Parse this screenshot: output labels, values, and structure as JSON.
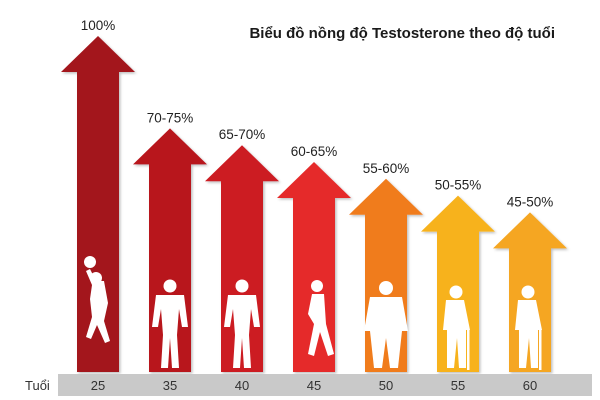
{
  "chart_data": {
    "type": "bar",
    "title": "Biểu đồ nồng độ Testosterone theo độ tuổi",
    "xlabel": "Tuổi",
    "categories": [
      "25",
      "35",
      "40",
      "45",
      "50",
      "55",
      "60"
    ],
    "value_labels": [
      "100%",
      "70-75%",
      "65-70%",
      "60-65%",
      "55-60%",
      "50-55%",
      "45-50%"
    ],
    "values": [
      100,
      72.5,
      67.5,
      62.5,
      57.5,
      52.5,
      47.5
    ],
    "colors": [
      "#a3131b",
      "#b8161f",
      "#cc1a22",
      "#e52a2a",
      "#f07b1f",
      "#f7b21c",
      "#f5a623"
    ],
    "figures": [
      "basketball-player-icon",
      "man-hands-on-hips-icon",
      "man-standing-icon",
      "man-walking-icon",
      "heavy-man-icon",
      "elderly-man-cane-icon",
      "elderly-man-cane-icon"
    ],
    "axis_bar_color": "#c9c9c9"
  }
}
